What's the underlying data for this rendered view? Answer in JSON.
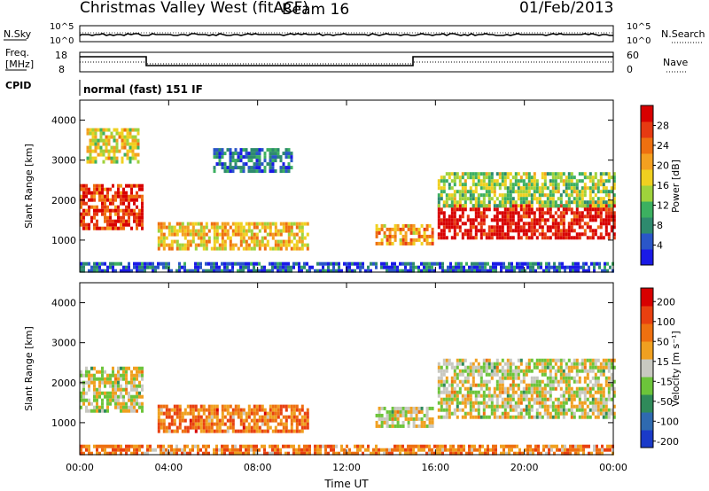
{
  "header": {
    "title": "Christmas Valley West (fitACF)",
    "beam": "Beam 16",
    "date": "01/Feb/2013"
  },
  "noise_panel": {
    "left_label": "N.Sky",
    "right_label": "N.Search",
    "left_ticks": [
      "10^5",
      "10^0"
    ],
    "right_ticks": [
      "10^5",
      "10^0"
    ]
  },
  "freq_panel": {
    "left_label_line1": "Freq.",
    "left_label_line2": "[MHz]",
    "right_label": "Nave",
    "left_ticks": [
      "18",
      "8"
    ],
    "right_ticks": [
      "60",
      "0"
    ]
  },
  "cpid": {
    "label": "CPID",
    "mode": "normal (fast) 151 IF"
  },
  "chart_data": [
    {
      "type": "heatmap",
      "name_panel": "power",
      "ylabel": "Slant Range [km]",
      "ylim": [
        200,
        4500
      ],
      "yticks": [
        "1000",
        "2000",
        "3000",
        "4000"
      ],
      "xlim_hours": [
        0,
        24
      ],
      "colorbar": {
        "label": "Power [dB]",
        "ticks": [
          "4",
          "8",
          "12",
          "16",
          "20",
          "24",
          "28"
        ],
        "colors": [
          "#1a1ae6",
          "#2a56c8",
          "#2e8a6e",
          "#3cb060",
          "#9fd23c",
          "#f0d020",
          "#f4a020",
          "#ee7010",
          "#e63a12",
          "#d80000"
        ]
      },
      "echo_regions": [
        {
          "t0": 0.0,
          "t1": 2.8,
          "r0": 1300,
          "r1": 2400,
          "level": 0.85
        },
        {
          "t0": 0.3,
          "t1": 2.6,
          "r0": 3000,
          "r1": 3800,
          "level": 0.55
        },
        {
          "t0": 3.5,
          "t1": 10.3,
          "r0": 800,
          "r1": 1450,
          "level": 0.6
        },
        {
          "t0": 6.0,
          "t1": 9.5,
          "r0": 2700,
          "r1": 3300,
          "level": 0.2
        },
        {
          "t0": 13.3,
          "t1": 15.9,
          "r0": 900,
          "r1": 1400,
          "level": 0.65
        },
        {
          "t0": 16.1,
          "t1": 24.0,
          "r0": 1100,
          "r1": 1900,
          "level": 0.95
        },
        {
          "t0": 16.1,
          "t1": 24.0,
          "r0": 1900,
          "r1": 2700,
          "level": 0.45
        },
        {
          "t0": 0.0,
          "t1": 24.0,
          "r0": 200,
          "r1": 450,
          "level": 0.15
        }
      ]
    },
    {
      "type": "heatmap",
      "name_panel": "velocity",
      "ylabel": "Slant Range [km]",
      "ylim": [
        200,
        4500
      ],
      "yticks": [
        "1000",
        "2000",
        "3000",
        "4000"
      ],
      "xlim_hours": [
        0,
        24
      ],
      "xticks": [
        "00:00",
        "04:00",
        "08:00",
        "12:00",
        "16:00",
        "20:00",
        "00:00"
      ],
      "xlabel": "Time UT",
      "colorbar": {
        "label": "Velocity [m s⁻¹]",
        "ticks": [
          "200",
          "100",
          "50",
          "15",
          "-15",
          "-50",
          "-100",
          "-200"
        ],
        "colors": [
          "#1a3ac8",
          "#2f6ab0",
          "#2f8a5a",
          "#6cc43a",
          "#c8c8c0",
          "#f0a020",
          "#ee7010",
          "#e84010",
          "#d80000"
        ]
      },
      "echo_regions": [
        {
          "t0": 0.0,
          "t1": 2.8,
          "r0": 1300,
          "r1": 2400,
          "level": 0.5
        },
        {
          "t0": 3.5,
          "t1": 10.3,
          "r0": 800,
          "r1": 1450,
          "level": 0.72
        },
        {
          "t0": 13.3,
          "t1": 15.9,
          "r0": 900,
          "r1": 1400,
          "level": 0.5
        },
        {
          "t0": 16.1,
          "t1": 24.0,
          "r0": 1100,
          "r1": 2600,
          "level": 0.5
        },
        {
          "t0": 0.0,
          "t1": 24.0,
          "r0": 200,
          "r1": 450,
          "level": 0.7
        }
      ]
    }
  ]
}
